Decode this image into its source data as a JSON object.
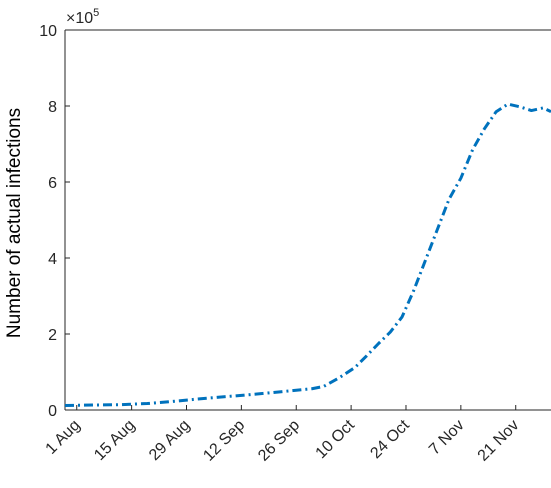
{
  "chart_data": {
    "type": "line",
    "ylabel": "Number of actual infections",
    "y_multiplier_base": "×10",
    "y_multiplier_exponent": "5",
    "y_scale": 100000,
    "ylim": [
      0,
      10
    ],
    "y_ticks": [
      0,
      2,
      4,
      6,
      8,
      10
    ],
    "y_tick_labels": [
      "0",
      "2",
      "4",
      "6",
      "8",
      "10"
    ],
    "xlim": [
      "2020-07-29",
      "2020-11-30"
    ],
    "x_ticks": [
      "2020-08-01",
      "2020-08-15",
      "2020-08-29",
      "2020-09-12",
      "2020-09-26",
      "2020-10-10",
      "2020-10-24",
      "2020-11-07",
      "2020-11-21"
    ],
    "x_tick_labels": [
      "1 Aug",
      "15 Aug",
      "29 Aug",
      "12 Sep",
      "26 Sep",
      "10 Oct",
      "24 Oct",
      "7 Nov",
      "21 Nov"
    ],
    "grid": false,
    "line_style": "dash-dot",
    "line_color": "#0072BD",
    "series": [
      {
        "x": [
          "2020-07-29",
          "2020-08-05",
          "2020-08-12",
          "2020-08-19",
          "2020-08-26",
          "2020-09-02",
          "2020-09-09",
          "2020-09-16",
          "2020-09-23",
          "2020-09-30",
          "2020-10-03",
          "2020-10-07",
          "2020-10-11",
          "2020-10-14",
          "2020-10-17",
          "2020-10-20",
          "2020-10-23",
          "2020-10-26",
          "2020-10-29",
          "2020-11-01",
          "2020-11-04",
          "2020-11-07",
          "2020-11-10",
          "2020-11-13",
          "2020-11-16",
          "2020-11-19",
          "2020-11-22",
          "2020-11-25",
          "2020-11-28",
          "2020-11-30"
        ],
        "values": [
          0.12,
          0.13,
          0.14,
          0.17,
          0.23,
          0.3,
          0.36,
          0.42,
          0.49,
          0.56,
          0.62,
          0.85,
          1.12,
          1.43,
          1.75,
          2.05,
          2.45,
          3.15,
          3.95,
          4.75,
          5.55,
          6.1,
          6.85,
          7.4,
          7.85,
          8.05,
          7.98,
          7.88,
          7.95,
          7.85
        ]
      }
    ]
  }
}
